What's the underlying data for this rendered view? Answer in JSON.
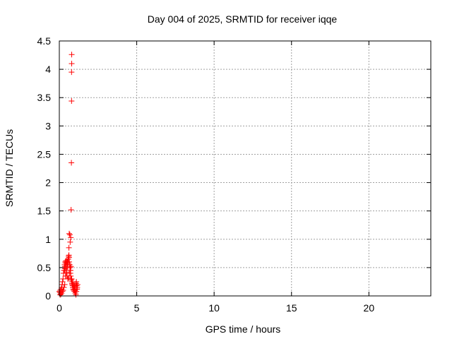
{
  "chart_data": {
    "type": "scatter",
    "title": "Day 004 of 2025, SRMTID for receiver iqqe",
    "xlabel": "GPS time / hours",
    "ylabel": "SRMTID / TECUs",
    "xlim": [
      0,
      24
    ],
    "ylim": [
      0,
      4.5
    ],
    "xticks": [
      0,
      5,
      10,
      15,
      20
    ],
    "xtick_labels": [
      "0",
      "5",
      "10",
      "15",
      "20"
    ],
    "yticks": [
      0,
      0.5,
      1,
      1.5,
      2,
      2.5,
      3,
      3.5,
      4,
      4.5
    ],
    "ytick_labels": [
      "0",
      "0.5",
      "1",
      "1.5",
      "2",
      "2.5",
      "3",
      "3.5",
      "4",
      "4.5"
    ],
    "grid": true,
    "marker": "plus",
    "color": "#ff0000",
    "x": [
      0.0,
      0.03,
      0.06,
      0.09,
      0.12,
      0.15,
      0.18,
      0.21,
      0.24,
      0.27,
      0.3,
      0.32,
      0.34,
      0.36,
      0.38,
      0.4,
      0.42,
      0.44,
      0.46,
      0.48,
      0.5,
      0.52,
      0.54,
      0.56,
      0.58,
      0.6,
      0.62,
      0.64,
      0.66,
      0.68,
      0.7,
      0.72,
      0.74,
      0.76,
      0.78,
      0.8,
      0.82,
      0.84,
      0.86,
      0.88,
      0.9,
      0.92,
      0.94,
      0.96,
      0.98,
      1.0,
      1.02,
      1.04,
      1.06,
      1.08,
      1.1,
      1.12,
      1.14,
      1.16,
      1.18,
      0.05,
      0.1,
      0.15,
      0.2,
      0.25,
      0.3,
      0.35,
      0.4,
      0.45,
      0.5,
      0.55,
      0.6,
      0.65,
      0.7,
      0.75,
      0.8,
      0.85,
      0.9,
      0.95,
      1.0,
      1.05,
      1.1,
      1.15,
      0.33,
      0.37,
      0.43,
      0.47,
      0.53,
      0.57,
      0.63,
      0.67,
      0.73,
      0.77,
      0.83,
      0.87,
      0.93,
      0.97,
      1.03,
      1.07,
      0.62,
      0.64,
      0.68,
      0.7,
      0.74,
      0.76,
      0.78,
      0.79,
      0.79,
      0.8
    ],
    "y": [
      0.08,
      0.06,
      0.1,
      0.05,
      0.12,
      0.15,
      0.2,
      0.25,
      0.3,
      0.4,
      0.45,
      0.5,
      0.55,
      0.52,
      0.6,
      0.58,
      0.62,
      0.55,
      0.5,
      0.6,
      0.62,
      0.55,
      0.5,
      0.58,
      0.65,
      0.7,
      0.72,
      0.6,
      0.55,
      0.5,
      0.45,
      0.4,
      0.35,
      0.3,
      0.28,
      0.25,
      0.22,
      0.2,
      0.18,
      0.15,
      0.12,
      0.1,
      0.15,
      0.2,
      0.18,
      0.12,
      0.1,
      0.15,
      0.2,
      0.22,
      0.25,
      0.18,
      0.12,
      0.15,
      0.2,
      0.02,
      0.03,
      0.05,
      0.08,
      0.1,
      0.15,
      0.2,
      0.35,
      0.4,
      0.35,
      0.3,
      0.32,
      0.4,
      0.5,
      0.52,
      0.3,
      0.25,
      0.2,
      0.15,
      0.1,
      0.05,
      0.08,
      0.12,
      0.45,
      0.48,
      0.5,
      0.42,
      0.6,
      0.65,
      0.68,
      0.55,
      0.45,
      0.3,
      0.2,
      0.15,
      0.1,
      0.08,
      0.05,
      0.02,
      0.85,
      1.1,
      1.08,
      0.95,
      1.03,
      1.52,
      2.35,
      3.44,
      3.95,
      4.1
    ],
    "y_extra_top": [
      4.26
    ],
    "x_extra_top": [
      0.8
    ]
  }
}
